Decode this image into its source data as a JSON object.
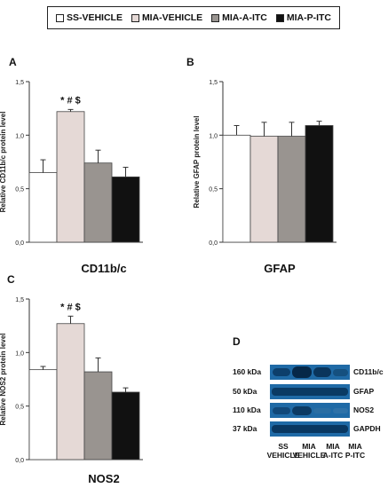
{
  "legend": {
    "items": [
      {
        "label": "SS-VEHICLE",
        "color": "#ffffff"
      },
      {
        "label": "MIA-VEHICLE",
        "color": "#e5d9d6"
      },
      {
        "label": "MIA-A-ITC",
        "color": "#999490"
      },
      {
        "label": "MIA-P-ITC",
        "color": "#111111"
      }
    ]
  },
  "panels": {
    "A": "A",
    "B": "B",
    "C": "C",
    "D": "D"
  },
  "chart_data": [
    {
      "type": "bar",
      "panel": "A",
      "title": "CD11b/c",
      "ylabel": "Relative CD11b/c protein level",
      "ylim": [
        0,
        1.5
      ],
      "yticks": [
        "0,0",
        "0,5",
        "1,0",
        "1,5"
      ],
      "categories": [
        "SS-VEHICLE",
        "MIA-VEHICLE",
        "MIA-A-ITC",
        "MIA-P-ITC"
      ],
      "values": [
        0.65,
        1.22,
        0.74,
        0.61
      ],
      "errors": [
        0.12,
        0.02,
        0.12,
        0.09
      ],
      "annotation": "* # $",
      "annotation_bar": 1
    },
    {
      "type": "bar",
      "panel": "B",
      "title": "GFAP",
      "ylabel": "Relative GFAP protein level",
      "ylim": [
        0,
        1.5
      ],
      "yticks": [
        "0,0",
        "0,5",
        "1,0",
        "1,5"
      ],
      "categories": [
        "SS-VEHICLE",
        "MIA-VEHICLE",
        "MIA-A-ITC",
        "MIA-P-ITC"
      ],
      "values": [
        1.0,
        0.99,
        0.99,
        1.09
      ],
      "errors": [
        0.09,
        0.13,
        0.13,
        0.04
      ],
      "annotation": "",
      "annotation_bar": -1
    },
    {
      "type": "bar",
      "panel": "C",
      "title": "NOS2",
      "ylabel": "Relative NOS2 protein level",
      "ylim": [
        0,
        1.5
      ],
      "yticks": [
        "0,0",
        "0,5",
        "1,0",
        "1,5"
      ],
      "categories": [
        "SS-VEHICLE",
        "MIA-VEHICLE",
        "MIA-A-ITC",
        "MIA-P-ITC"
      ],
      "values": [
        0.84,
        1.27,
        0.82,
        0.63
      ],
      "errors": [
        0.03,
        0.07,
        0.13,
        0.04
      ],
      "annotation": "* # $",
      "annotation_bar": 1
    }
  ],
  "blot": {
    "kda_labels": [
      "160 kDa",
      "50 kDa",
      "110 kDa",
      "37 kDa"
    ],
    "protein_labels": [
      "CD11b/c",
      "GFAP",
      "NOS2",
      "GAPDH"
    ],
    "lanes": [
      {
        "line1": "SS",
        "line2": "VEHICLE"
      },
      {
        "line1": "MIA",
        "line2": "VEHICLE"
      },
      {
        "line1": "MIA",
        "line2": "A-ITC"
      },
      {
        "line1": "MIA",
        "line2": "P-ITC"
      }
    ]
  }
}
